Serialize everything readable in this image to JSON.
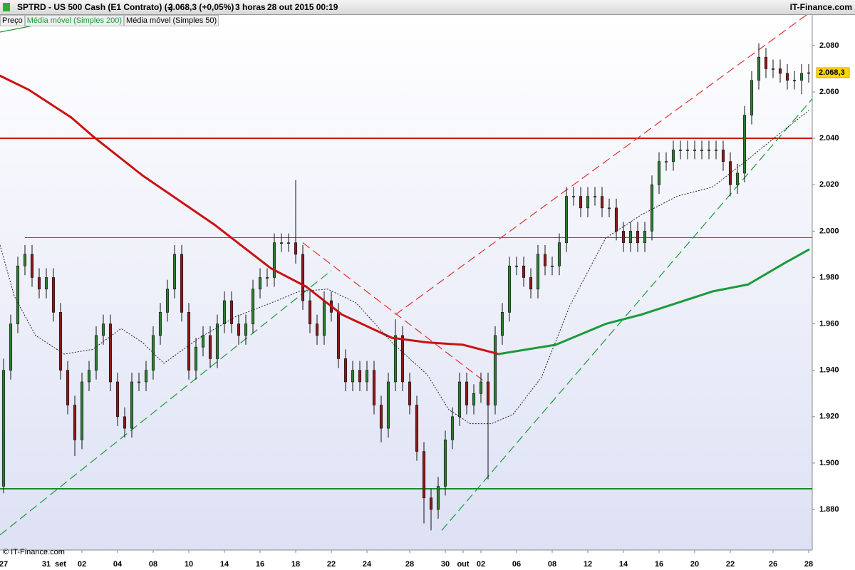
{
  "header": {
    "symbol": "SPTRD - US 500 Cash (E1 Contrato) (-)",
    "quote": "2.068,3 (+0,05%)",
    "period": "3 horas",
    "datetime": "28 out 2015 00:19",
    "brand": "IT-Finance.com"
  },
  "footer": "© IT-Finance.com",
  "chart_data": {
    "type": "candlestick",
    "open": [
      1890,
      1940,
      1960,
      1985,
      1990,
      1980,
      1975,
      1980,
      1965,
      1940,
      1925,
      1910,
      1935,
      1940,
      1955,
      1960,
      1935,
      1920,
      1915,
      1935,
      1935,
      1940,
      1955,
      1965,
      1975,
      1990,
      1965,
      1940,
      1950,
      1955,
      1945,
      1960,
      1970,
      1960,
      1955,
      1960,
      1975,
      1980,
      1980,
      1995,
      1995,
      1995,
      1990,
      1970,
      1960,
      1955,
      1970,
      1965,
      1945,
      1935,
      1940,
      1935,
      1940,
      1925,
      1915,
      1935,
      1955,
      1935,
      1925,
      1905,
      1885,
      1880,
      1890,
      1910,
      1920,
      1935,
      1925,
      1930,
      1935,
      1925,
      1955,
      1965,
      1985,
      1985,
      1980,
      1975,
      1990,
      1985,
      1985,
      1995,
      2015,
      2015,
      2010,
      2015,
      2015,
      2010,
      2010,
      2000,
      1995,
      2000,
      1995,
      2000,
      2020,
      2030,
      2030,
      2035,
      2035,
      2035,
      2035,
      2035,
      2035,
      2035,
      2030,
      2020,
      2025,
      2050,
      2065,
      2075,
      2070,
      2070,
      2068,
      2065,
      2065,
      2068
    ],
    "high": [
      1945,
      1964,
      1989,
      1994,
      1994,
      1984,
      1984,
      1984,
      1969,
      1944,
      1929,
      1939,
      1944,
      1959,
      1964,
      1964,
      1939,
      1924,
      1939,
      1939,
      1944,
      1959,
      1969,
      1979,
      1994,
      1994,
      1969,
      1954,
      1959,
      1959,
      1964,
      1974,
      1974,
      1964,
      1964,
      1979,
      1984,
      1984,
      1999,
      1999,
      1999,
      2022,
      1994,
      1974,
      1964,
      1974,
      1974,
      1969,
      1949,
      1944,
      1944,
      1944,
      1944,
      1929,
      1939,
      1962,
      1959,
      1939,
      1929,
      1909,
      1889,
      1894,
      1914,
      1924,
      1939,
      1939,
      1934,
      1939,
      1939,
      1959,
      1969,
      1989,
      1989,
      1989,
      1984,
      1994,
      1994,
      1989,
      1999,
      2019,
      2019,
      2019,
      2019,
      2019,
      2019,
      2014,
      2014,
      2004,
      2004,
      2004,
      2004,
      2024,
      2034,
      2034,
      2039,
      2039,
      2039,
      2039,
      2039,
      2039,
      2039,
      2039,
      2034,
      2029,
      2054,
      2069,
      2081,
      2079,
      2074,
      2074,
      2072,
      2069,
      2072,
      2072
    ],
    "low": [
      1887,
      1936,
      1956,
      1981,
      1976,
      1971,
      1971,
      1961,
      1936,
      1921,
      1903,
      1906,
      1931,
      1936,
      1951,
      1931,
      1916,
      1911,
      1911,
      1931,
      1931,
      1936,
      1951,
      1961,
      1971,
      1961,
      1936,
      1936,
      1946,
      1941,
      1941,
      1956,
      1956,
      1951,
      1951,
      1956,
      1971,
      1976,
      1976,
      1991,
      1991,
      1986,
      1966,
      1956,
      1951,
      1951,
      1961,
      1941,
      1931,
      1931,
      1931,
      1931,
      1921,
      1909,
      1911,
      1931,
      1931,
      1921,
      1901,
      1874,
      1871,
      1876,
      1886,
      1906,
      1916,
      1921,
      1921,
      1926,
      1893,
      1921,
      1951,
      1961,
      1981,
      1976,
      1971,
      1971,
      1981,
      1981,
      1981,
      1991,
      2011,
      2006,
      2006,
      2011,
      2006,
      2006,
      1996,
      1991,
      1991,
      1991,
      1991,
      1996,
      2016,
      2026,
      2026,
      2031,
      2031,
      2031,
      2031,
      2031,
      2031,
      2026,
      2015,
      2016,
      2021,
      2046,
      2061,
      2066,
      2066,
      2064,
      2061,
      2061,
      2059,
      2064
    ],
    "close": [
      1940,
      1960,
      1985,
      1990,
      1980,
      1975,
      1980,
      1965,
      1940,
      1925,
      1910,
      1935,
      1940,
      1955,
      1960,
      1935,
      1920,
      1915,
      1935,
      1935,
      1940,
      1955,
      1965,
      1975,
      1990,
      1965,
      1940,
      1950,
      1955,
      1945,
      1960,
      1970,
      1960,
      1955,
      1960,
      1975,
      1980,
      1980,
      1995,
      1995,
      1995,
      1990,
      1970,
      1960,
      1955,
      1970,
      1965,
      1945,
      1935,
      1940,
      1935,
      1940,
      1925,
      1915,
      1935,
      1955,
      1935,
      1925,
      1905,
      1885,
      1880,
      1890,
      1910,
      1920,
      1935,
      1925,
      1930,
      1935,
      1925,
      1955,
      1965,
      1985,
      1985,
      1980,
      1975,
      1990,
      1985,
      1985,
      1995,
      2015,
      2015,
      2010,
      2015,
      2015,
      2010,
      2010,
      2000,
      1995,
      2000,
      1995,
      2000,
      2020,
      2030,
      2030,
      2035,
      2035,
      2035,
      2035,
      2035,
      2035,
      2035,
      2030,
      2020,
      2025,
      2050,
      2065,
      2075,
      2070,
      2070,
      2068,
      2065,
      2065,
      2068,
      2068.3
    ],
    "up_color": "#2e7d32",
    "down_color": "#8b1a1a",
    "xlim": [
      -0.5,
      113.5
    ],
    "xticks": [
      {
        "value": 0,
        "label": "27"
      },
      {
        "value": 6,
        "label": "31"
      },
      {
        "value": 8,
        "label": "set"
      },
      {
        "value": 11,
        "label": "02"
      },
      {
        "value": 16,
        "label": "04"
      },
      {
        "value": 21,
        "label": "08"
      },
      {
        "value": 26,
        "label": "10"
      },
      {
        "value": 31,
        "label": "14"
      },
      {
        "value": 36,
        "label": "16"
      },
      {
        "value": 41,
        "label": "18"
      },
      {
        "value": 46,
        "label": "22"
      },
      {
        "value": 51,
        "label": "24"
      },
      {
        "value": 57,
        "label": "28"
      },
      {
        "value": 62,
        "label": "30"
      },
      {
        "value": 64.5,
        "label": "out"
      },
      {
        "value": 67,
        "label": "02"
      },
      {
        "value": 72,
        "label": "06"
      },
      {
        "value": 77,
        "label": "08"
      },
      {
        "value": 82,
        "label": "12"
      },
      {
        "value": 87,
        "label": "14"
      },
      {
        "value": 92,
        "label": "16"
      },
      {
        "value": 97,
        "label": "20"
      },
      {
        "value": 102,
        "label": "22"
      },
      {
        "value": 108,
        "label": "26"
      },
      {
        "value": 113,
        "label": "28"
      }
    ],
    "ylim": [
      1862.5,
      2093.5
    ],
    "yticks": [
      {
        "value": 1880,
        "label": "1.880"
      },
      {
        "value": 1900,
        "label": "1.900"
      },
      {
        "value": 1920,
        "label": "1.920"
      },
      {
        "value": 1940,
        "label": "1.940"
      },
      {
        "value": 1960,
        "label": "1.960"
      },
      {
        "value": 1980,
        "label": "1.980"
      },
      {
        "value": 2000,
        "label": "2.000"
      },
      {
        "value": 2020,
        "label": "2.020"
      },
      {
        "value": 2040,
        "label": "2.040"
      },
      {
        "value": 2060,
        "label": "2.060"
      },
      {
        "value": 2080,
        "label": "2.080"
      }
    ],
    "last_price": {
      "value": 2068.3,
      "label": "2.068,3"
    },
    "series": [
      {
        "name": "Preço"
      },
      {
        "name": "Média móvel (Simples 200)",
        "rising_color": "#1a9a3a",
        "falling_color": "#cc1111",
        "x": [
          -0.5,
          3.5,
          9.5,
          12.5,
          19.5,
          29.5,
          37.5,
          42.5,
          47.5,
          54.5,
          59.5,
          64.5,
          69.5,
          71.5,
          77.5,
          84.5,
          89.5,
          99.5,
          104.5,
          109.5,
          113
        ],
        "values": [
          2067,
          2061,
          2049,
          2041,
          2024,
          2003,
          1984,
          1976,
          1964,
          1954,
          1952,
          1951,
          1947,
          1948,
          1951,
          1960,
          1964,
          1974,
          1977,
          1986,
          1992
        ]
      },
      {
        "name": "Média móvel (Simples 50)",
        "color": "#222222",
        "x": [
          -0.5,
          1.5,
          4.5,
          8.5,
          12.5,
          16.5,
          19.5,
          22.5,
          27.5,
          32.5,
          37.5,
          41.5,
          45.5,
          49.5,
          54.5,
          59.5,
          62.5,
          65.5,
          68.5,
          71.5,
          75.5,
          79.5,
          84.5,
          89.5,
          94.5,
          99.5,
          104.5,
          108.5,
          113
        ],
        "values": [
          1994,
          1972,
          1955,
          1947,
          1949,
          1958,
          1952,
          1943,
          1954,
          1963,
          1969,
          1974,
          1975,
          1969,
          1952,
          1938,
          1923,
          1917,
          1917,
          1921,
          1937,
          1968,
          1997,
          2007,
          2015,
          2019,
          2031,
          2041,
          2052
        ]
      }
    ],
    "hlines": [
      {
        "value": 2040,
        "color": "#cc1111",
        "from": -0.5
      },
      {
        "value": 1997.2,
        "color": "#1a8a2a",
        "from": 3
      },
      {
        "value": 1888.9,
        "color": "#1a8a2a",
        "from": -0.5
      }
    ],
    "trendlines": [
      {
        "x": [
          -0.5,
          46
        ],
        "values": [
          1869,
          1983
        ],
        "color": "#1a9a3a",
        "dash": true
      },
      {
        "x": [
          42,
          68
        ],
        "values": [
          1995,
          1934
        ],
        "color": "#e03030",
        "dash": true
      },
      {
        "x": [
          55,
          113.5
        ],
        "values": [
          1964,
          2095
        ],
        "color": "#e03030",
        "dash": true
      },
      {
        "x": [
          61.5,
          113.5
        ],
        "values": [
          1871,
          2057
        ],
        "color": "#1a9a3a",
        "dash": true
      },
      {
        "x": [
          -0.5,
          6.5
        ],
        "values": [
          2085.8,
          2090
        ],
        "color": "#1a8a2a",
        "dash": false
      }
    ]
  }
}
